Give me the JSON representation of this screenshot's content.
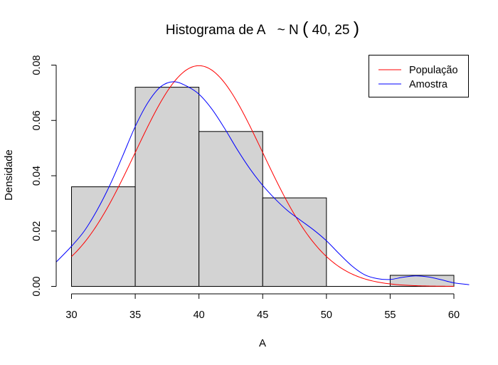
{
  "chart_data": {
    "type": "bar",
    "title_prefix": "Histograma de A",
    "title_dist": "~ N",
    "title_params": "40, 25",
    "xlabel": "A",
    "ylabel": "Densidade",
    "xlim": [
      30,
      60
    ],
    "ylim": [
      0,
      0.08
    ],
    "x_ticks": [
      "30",
      "35",
      "40",
      "45",
      "50",
      "55",
      "60"
    ],
    "y_ticks": [
      "0.00",
      "0.02",
      "0.04",
      "0.06",
      "0.08"
    ],
    "bins": [
      {
        "from": 30,
        "to": 35,
        "density": 0.036
      },
      {
        "from": 35,
        "to": 40,
        "density": 0.072
      },
      {
        "from": 40,
        "to": 45,
        "density": 0.056
      },
      {
        "from": 45,
        "to": 50,
        "density": 0.032
      },
      {
        "from": 50,
        "to": 55,
        "density": 0.0
      },
      {
        "from": 55,
        "to": 60,
        "density": 0.004
      }
    ],
    "bar_fill": "#d3d3d3",
    "series": [
      {
        "name": "População",
        "color": "#ff0000",
        "curve": "normal",
        "mean": 40,
        "sd": 5,
        "x_from": 30,
        "x_to": 60
      },
      {
        "name": "Amostra",
        "color": "#0000ff",
        "curve": "density",
        "x": [
          28.8,
          30,
          31,
          32,
          33,
          34,
          35,
          36,
          37,
          38,
          39,
          40,
          41,
          42,
          43,
          44,
          45,
          46,
          47,
          48,
          49,
          50,
          51,
          52,
          53,
          54,
          55,
          56,
          57,
          58,
          59,
          60,
          61.2
        ],
        "y": [
          0.0088,
          0.0145,
          0.02,
          0.0275,
          0.0365,
          0.047,
          0.0578,
          0.0665,
          0.0722,
          0.074,
          0.0725,
          0.0695,
          0.0642,
          0.0572,
          0.0495,
          0.0425,
          0.0365,
          0.0315,
          0.0272,
          0.0238,
          0.0204,
          0.0165,
          0.0118,
          0.0074,
          0.0042,
          0.0028,
          0.0025,
          0.0033,
          0.0038,
          0.0034,
          0.0024,
          0.0013,
          0.0006
        ]
      }
    ],
    "legend_position": "top-right",
    "grid": false
  }
}
